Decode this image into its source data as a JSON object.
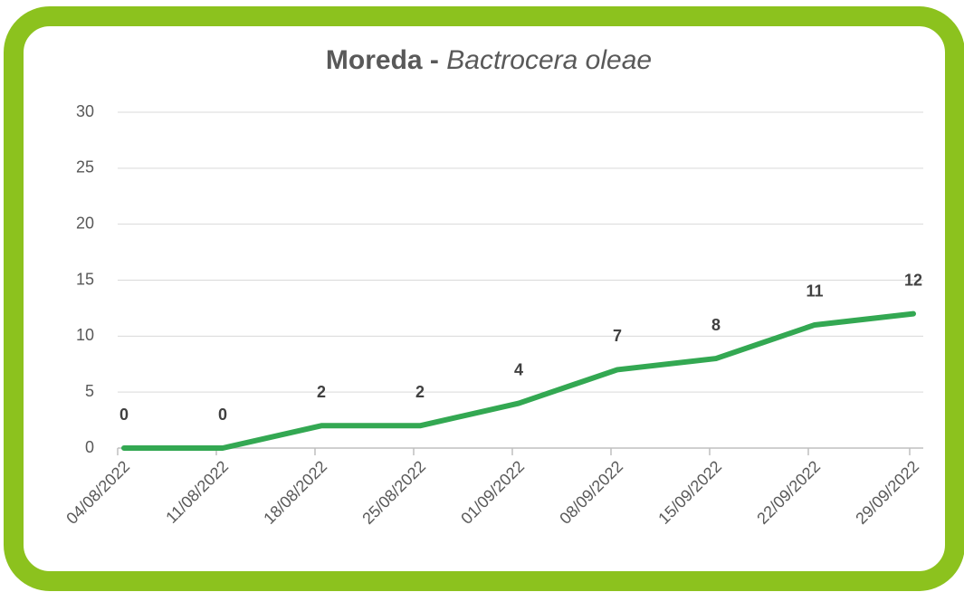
{
  "chart_data": {
    "type": "line",
    "title": "Moreda -",
    "subtitle": "Bactrocera oleae",
    "categories": [
      "04/08/2022",
      "11/08/2022",
      "18/08/2022",
      "25/08/2022",
      "01/09/2022",
      "08/09/2022",
      "15/09/2022",
      "22/09/2022",
      "29/09/2022"
    ],
    "values": [
      0,
      0,
      2,
      2,
      4,
      7,
      8,
      11,
      12
    ],
    "color": "#33a852",
    "ylim": [
      0,
      30
    ],
    "yticks": [
      0,
      5,
      10,
      15,
      20,
      25,
      30
    ],
    "grid": true
  }
}
